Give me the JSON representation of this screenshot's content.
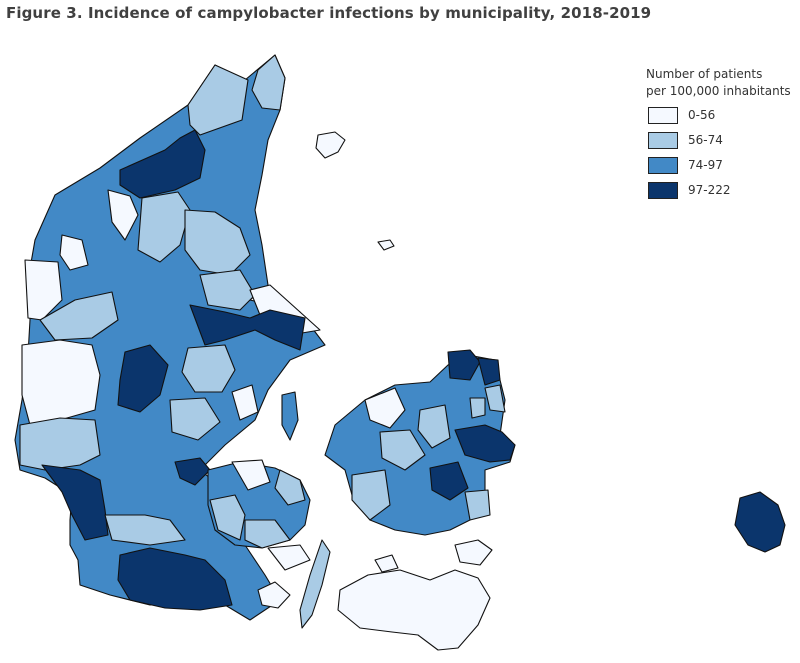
{
  "title": "Figure 3. Incidence of campylobacter infections by municipality, 2018-2019",
  "legend": {
    "title_line1": "Number of patients",
    "title_line2": "per 100,000 inhabitants",
    "classes": [
      {
        "label": "0-56",
        "color": "#f5f9ff"
      },
      {
        "label": "56-74",
        "color": "#a9cbe5"
      },
      {
        "label": "74-97",
        "color": "#4289c6"
      },
      {
        "label": "97-222",
        "color": "#0b356c"
      }
    ]
  }
}
